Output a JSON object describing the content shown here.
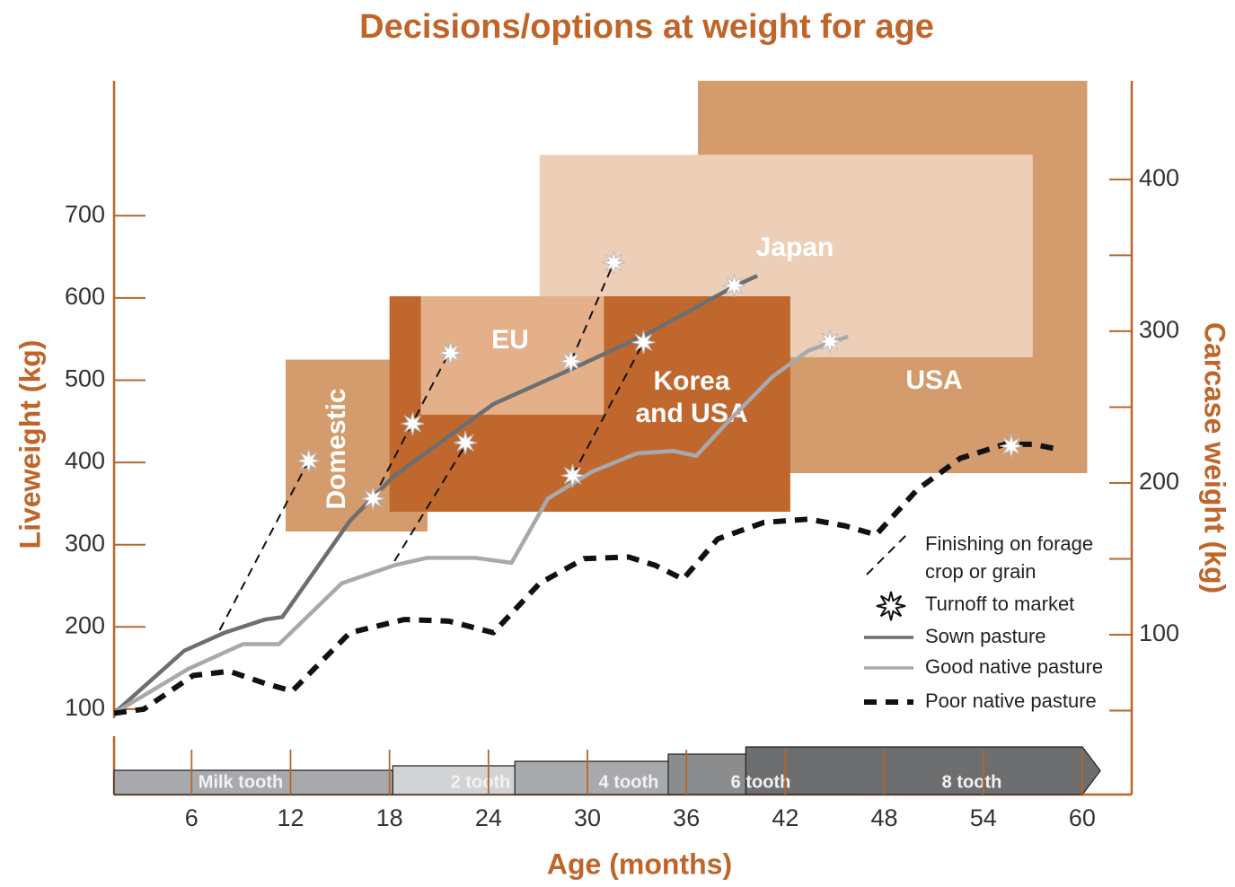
{
  "chart_data": {
    "type": "line",
    "title": "Decisions/options at weight for age",
    "xlabel": "Age (months)",
    "ylabel": "Liveweight (kg)",
    "y2label": "Carcase weight (kg)",
    "xlim": [
      1.3,
      63
    ],
    "ylim": [
      89,
      864
    ],
    "y2lim": [
      45,
      465
    ],
    "xticks": [
      6,
      12,
      18,
      24,
      30,
      36,
      42,
      48,
      54,
      60
    ],
    "yticks": [
      100,
      200,
      300,
      400,
      500,
      600,
      700
    ],
    "y2ticks": [
      100,
      200,
      300,
      400
    ],
    "y2minor_ticks": [
      50,
      150,
      250,
      350
    ],
    "axis_color": "#b8662b",
    "regions": [
      {
        "name": "USA",
        "color": "#d49b6c",
        "x": [
          36.7,
          60.3
        ],
        "y": [
          387,
          864
        ]
      },
      {
        "name": "Japan",
        "color": "#edcfb8",
        "x": [
          27.1,
          57.0
        ],
        "y": [
          528,
          774
        ]
      },
      {
        "name": "Domestic",
        "color": "#d49b6c",
        "x": [
          11.7,
          20.3
        ],
        "y": [
          316,
          525
        ]
      },
      {
        "name": "Korea and USA",
        "name_lines": [
          "Korea",
          "and USA"
        ],
        "color": "#c0672d",
        "x": [
          18.0,
          42.3
        ],
        "y": [
          340,
          602
        ]
      },
      {
        "name": "EU",
        "color": "#e3b08a",
        "x": [
          19.9,
          31.0
        ],
        "y": [
          458,
          602
        ]
      }
    ],
    "series": [
      {
        "name": "Sown pasture",
        "color": "#6d6e70",
        "style": "solid",
        "x": [
          1.3,
          5.55,
          8.0,
          10.45,
          11.5,
          15.6,
          18.3,
          24.3,
          29.2,
          33.6,
          39.0,
          40.3
        ],
        "values": [
          95,
          171,
          193,
          209,
          212,
          329,
          384,
          471,
          515,
          556,
          615,
          627
        ]
      },
      {
        "name": "Good native pasture",
        "color": "#a7a9ac",
        "style": "solid",
        "x": [
          1.3,
          5.8,
          9.1,
          11.3,
          15.1,
          18.3,
          20.3,
          23.2,
          25.4,
          27.6,
          30.3,
          33.0,
          35.2,
          36.6,
          38.5,
          41.2,
          43.4,
          45.8
        ],
        "values": [
          95,
          149,
          179,
          179,
          253,
          275,
          284,
          284,
          278,
          356,
          389,
          411,
          414,
          408,
          449,
          504,
          536,
          553
        ]
      },
      {
        "name": "Poor native pasture",
        "color": "#111111",
        "style": "dashed",
        "x": [
          1.3,
          3.1,
          6.1,
          8.3,
          10.5,
          12.1,
          15.6,
          18.9,
          21.6,
          24.3,
          27.1,
          29.8,
          32.5,
          34.1,
          35.8,
          37.9,
          40.7,
          43.4,
          45.6,
          47.5,
          50.0,
          52.6,
          55.3,
          57.0,
          58.6
        ],
        "values": [
          95,
          100,
          141,
          146,
          131,
          122,
          193,
          209,
          207,
          193,
          253,
          283,
          285,
          275,
          258,
          307,
          327,
          331,
          323,
          312,
          367,
          405,
          422,
          422,
          416
        ]
      }
    ],
    "finishing": {
      "name_lines": [
        "Finishing on forage",
        "crop or grain"
      ],
      "color": "#111111",
      "segments": [
        {
          "x": [
            7.7,
            13.1
          ],
          "values": [
            196,
            402
          ]
        },
        {
          "x": [
            17.0,
            21.6
          ],
          "values": [
            356,
            533
          ]
        },
        {
          "x": [
            18.3,
            22.7
          ],
          "values": [
            280,
            424
          ]
        },
        {
          "x": [
            29.0,
            31.6
          ],
          "values": [
            523,
            643
          ]
        },
        {
          "x": [
            29.1,
            33.4
          ],
          "values": [
            384,
            546
          ]
        }
      ]
    },
    "markers": {
      "name": "Turnoff to market",
      "x": [
        13.1,
        17.0,
        19.4,
        21.7,
        22.6,
        29.0,
        29.1,
        31.6,
        33.4,
        38.9,
        44.7,
        55.7
      ],
      "values": [
        402,
        356,
        447,
        533,
        424,
        523,
        384,
        643,
        546,
        615,
        547,
        420
      ]
    },
    "teeth": [
      {
        "name": "Milk tooth",
        "color": "#a7a9ac",
        "start": 1.3,
        "end": 18.2
      },
      {
        "name": "2 tooth",
        "color": "#d1d3d4",
        "start": 18.2,
        "end": 29.1
      },
      {
        "name": "4 tooth",
        "color": "#a7a9ac",
        "start": 25.6,
        "end": 35.9
      },
      {
        "name": "6 tooth",
        "color": "#8a8c8e",
        "start": 34.9,
        "end": 46.1
      },
      {
        "name": "8 tooth",
        "color": "#6d6e70",
        "start": 39.6,
        "end": 61.1
      }
    ]
  }
}
